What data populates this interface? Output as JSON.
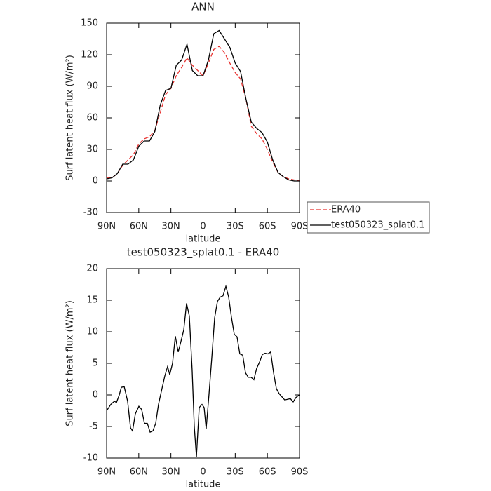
{
  "chart_data": [
    {
      "type": "line",
      "title": "ANN",
      "xlabel": "latitude",
      "ylabel": "Surf latent heat flux (W/m²)",
      "x": [
        90,
        85,
        80,
        75,
        70,
        65,
        60,
        55,
        50,
        45,
        40,
        35,
        30,
        25,
        20,
        15,
        10,
        5,
        0,
        -5,
        -10,
        -15,
        -20,
        -25,
        -30,
        -35,
        -40,
        -45,
        -50,
        -55,
        -60,
        -65,
        -70,
        -75,
        -80,
        -85,
        -90
      ],
      "series": [
        {
          "name": "ERA40",
          "color": "#e8312f",
          "line_style": "dashed",
          "values": [
            3,
            3,
            7,
            15,
            20,
            25,
            35,
            40,
            42,
            48,
            65,
            82,
            88,
            100,
            108,
            117,
            110,
            105,
            100,
            112,
            125,
            128,
            122,
            112,
            103,
            97,
            78,
            52,
            45,
            40,
            30,
            18,
            8,
            4,
            2,
            1,
            0
          ]
        },
        {
          "name": "test050323_splat0.1",
          "color": "#000000",
          "line_style": "solid",
          "values": [
            2,
            3,
            7,
            16,
            16,
            20,
            33,
            38,
            38,
            47,
            72,
            86,
            88,
            110,
            115,
            130,
            105,
            100,
            100,
            115,
            140,
            143,
            135,
            127,
            112,
            104,
            78,
            56,
            50,
            46,
            37,
            20,
            8,
            4,
            1,
            0,
            0
          ]
        }
      ],
      "xlim": [
        90,
        -90
      ],
      "xticks": [
        {
          "value": 90,
          "label": "90N"
        },
        {
          "value": 60,
          "label": "60N"
        },
        {
          "value": 30,
          "label": "30N"
        },
        0,
        {
          "value": -30,
          "label": "30S"
        },
        {
          "value": -60,
          "label": "60S"
        },
        {
          "value": -90,
          "label": "90S"
        }
      ],
      "ylim": [
        -30,
        150
      ],
      "yticks": [
        -30,
        0,
        30,
        60,
        90,
        120,
        150
      ],
      "legend": "right"
    },
    {
      "type": "line",
      "title": "test050323_splat0.1 - ERA40",
      "xlabel": "latitude",
      "ylabel": "Surf latent heat flux (W/m²)",
      "x": [
        90,
        86.1,
        82.8,
        80.8,
        78.2,
        76.3,
        73.6,
        70.4,
        67.7,
        65.8,
        63.2,
        59.9,
        57.3,
        54.7,
        52,
        49.4,
        46.8,
        44.2,
        41.6,
        39,
        35.7,
        33.1,
        31.1,
        28.5,
        25.9,
        23.2,
        20.6,
        18,
        15.4,
        12.8,
        10.2,
        8.2,
        6.2,
        3.6,
        1,
        -1,
        -2.9,
        -5.5,
        -8.2,
        -10.8,
        -13.4,
        -16,
        -18.6,
        -21.3,
        -23.9,
        -26.5,
        -29.1,
        -31.7,
        -34.3,
        -37,
        -39.6,
        -42.2,
        -44.8,
        -47.4,
        -50,
        -52.7,
        -55.3,
        -57.9,
        -60.5,
        -63.1,
        -65.8,
        -68.4,
        -71,
        -73.6,
        -76.2,
        -78.8,
        -81.5,
        -84.1,
        -86.7,
        -90
      ],
      "values": [
        -2.5,
        -1.5,
        -1,
        -1.2,
        0,
        1.2,
        1.3,
        -1,
        -5.2,
        -5.7,
        -3,
        -1.8,
        -2.3,
        -4.5,
        -4.5,
        -5.9,
        -5.7,
        -4.5,
        -1.5,
        0.5,
        3,
        4.5,
        3.2,
        5,
        9.3,
        6.8,
        8.5,
        10.3,
        14.5,
        12.5,
        4,
        -5,
        -9.8,
        -2,
        -1.5,
        -2,
        -5.4,
        0,
        6,
        12.2,
        14.8,
        15.5,
        15.7,
        17.2,
        15.5,
        12.3,
        9.6,
        9.2,
        6.5,
        6.3,
        3.5,
        2.8,
        2.8,
        2.4,
        4.2,
        5.2,
        6.4,
        6.6,
        6.5,
        6.8,
        3.5,
        1,
        0.2,
        -0.3,
        -0.8,
        -0.7,
        -0.6,
        -1.1,
        -0.4,
        0
      ],
      "color": "#000000",
      "xlim": [
        90,
        -90
      ],
      "xticks": [
        {
          "value": 90,
          "label": "90N"
        },
        {
          "value": 60,
          "label": "60N"
        },
        {
          "value": 30,
          "label": "30N"
        },
        0,
        {
          "value": -30,
          "label": "30S"
        },
        {
          "value": -60,
          "label": "60S"
        },
        {
          "value": -90,
          "label": "90S"
        }
      ],
      "ylim": [
        -10,
        20
      ],
      "yticks": [
        -10,
        -5,
        0,
        5,
        10,
        15,
        20
      ]
    }
  ]
}
